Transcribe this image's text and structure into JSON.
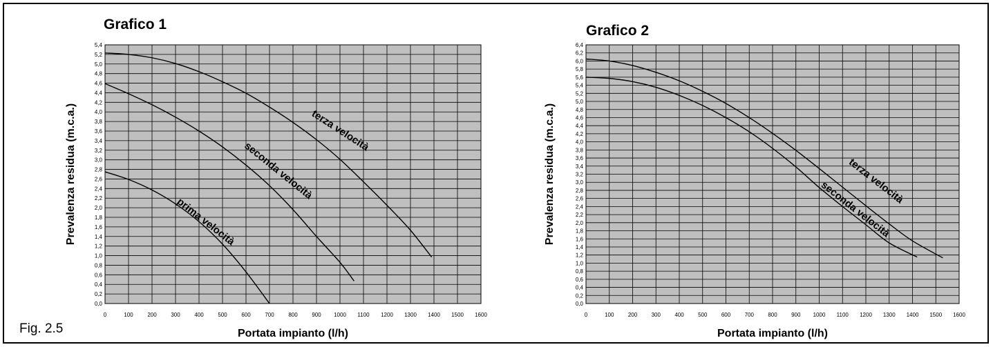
{
  "figure_label": "Fig. 2.5",
  "chart_data": [
    {
      "type": "line",
      "title": "Grafico 1",
      "xlabel": "Portata impianto (l/h)",
      "ylabel": "Prevalenza residua (m.c.a.)",
      "xlim": [
        0,
        1600
      ],
      "ylim": [
        0,
        5.4
      ],
      "x_ticks": [
        "0",
        "100",
        "200",
        "300",
        "400",
        "500",
        "600",
        "700",
        "800",
        "900",
        "1000",
        "1100",
        "1200",
        "1300",
        "1400",
        "1500",
        "1600"
      ],
      "y_ticks": [
        "0,0",
        "0,2",
        "0,4",
        "0,6",
        "0,8",
        "1,0",
        "1,2",
        "1,4",
        "1,6",
        "1,8",
        "2,0",
        "2,2",
        "2,4",
        "2,6",
        "2,8",
        "3,0",
        "3,2",
        "3,4",
        "3,6",
        "3,8",
        "4,0",
        "4,2",
        "4,4",
        "4,6",
        "4,8",
        "5,0",
        "5,2",
        "5,4"
      ],
      "grid": true,
      "series": [
        {
          "name": "prima velocità",
          "x": [
            0,
            100,
            200,
            300,
            400,
            500,
            600,
            700
          ],
          "y": [
            2.75,
            2.59,
            2.37,
            2.08,
            1.71,
            1.24,
            0.66,
            0.0
          ]
        },
        {
          "name": "seconda velocità",
          "x": [
            0,
            100,
            200,
            300,
            400,
            500,
            600,
            700,
            800,
            900,
            1000,
            1060
          ],
          "y": [
            4.59,
            4.38,
            4.15,
            3.89,
            3.6,
            3.27,
            2.89,
            2.46,
            1.96,
            1.4,
            0.86,
            0.47
          ]
        },
        {
          "name": "terza velocità",
          "x": [
            0,
            100,
            200,
            300,
            400,
            500,
            600,
            700,
            800,
            900,
            1000,
            1100,
            1200,
            1300,
            1390
          ],
          "y": [
            5.23,
            5.2,
            5.13,
            5.01,
            4.84,
            4.63,
            4.39,
            4.1,
            3.78,
            3.42,
            3.01,
            2.54,
            2.05,
            1.53,
            0.97
          ]
        }
      ]
    },
    {
      "type": "line",
      "title": "Grafico 2",
      "xlabel": "Portata impianto (l/h)",
      "ylabel": "Prevalenza residua (m.c.a.)",
      "xlim": [
        0,
        1600
      ],
      "ylim": [
        0,
        6.4
      ],
      "x_ticks": [
        "0",
        "100",
        "200",
        "300",
        "400",
        "500",
        "600",
        "700",
        "800",
        "900",
        "1000",
        "1100",
        "1200",
        "1300",
        "1400",
        "1500",
        "1600"
      ],
      "y_ticks": [
        "0,0",
        "0,2",
        "0,4",
        "0,6",
        "0,8",
        "1,0",
        "1,2",
        "1,4",
        "1,6",
        "1,8",
        "2,0",
        "2,2",
        "2,4",
        "2,6",
        "2,8",
        "3,0",
        "3,2",
        "3,4",
        "3,6",
        "3,8",
        "4,0",
        "4,2",
        "4,4",
        "4,6",
        "4,8",
        "5,0",
        "5,2",
        "5,4",
        "5,6",
        "5,8",
        "6,0",
        "6,2",
        "6,4"
      ],
      "grid": true,
      "series": [
        {
          "name": "seconda velocità",
          "x": [
            0,
            100,
            200,
            300,
            400,
            500,
            600,
            700,
            800,
            900,
            1000,
            1100,
            1200,
            1300,
            1420
          ],
          "y": [
            5.6,
            5.57,
            5.49,
            5.35,
            5.15,
            4.9,
            4.6,
            4.25,
            3.84,
            3.38,
            2.87,
            2.4,
            1.95,
            1.5,
            1.15
          ]
        },
        {
          "name": "terza velocità",
          "x": [
            0,
            100,
            200,
            300,
            400,
            500,
            600,
            700,
            800,
            900,
            1000,
            1100,
            1200,
            1300,
            1400,
            1530
          ],
          "y": [
            6.05,
            6.0,
            5.89,
            5.72,
            5.51,
            5.25,
            4.95,
            4.6,
            4.21,
            3.79,
            3.34,
            2.88,
            2.42,
            1.97,
            1.55,
            1.13
          ]
        }
      ]
    }
  ]
}
